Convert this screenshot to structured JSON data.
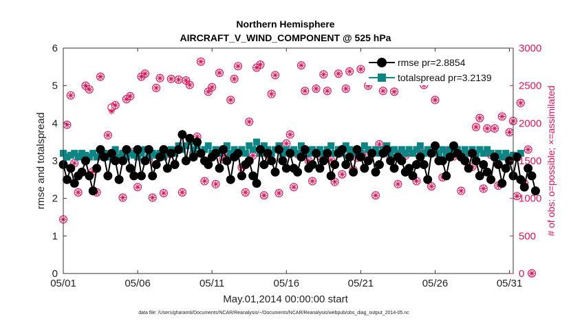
{
  "chart_data": {
    "type": "line",
    "title": [
      "Northern Hemisphere",
      "AIRCRAFT_V_WIND_COMPONENT @ 525 hPa"
    ],
    "xlabel": "May.01,2014 00:00:00 start",
    "ylabel": "rmse and totalspread",
    "ylabel_right": "# of obs: o=possible; ×=assimilated",
    "footnote": "data file: /Users/gharamti/Documents/NCAR/Reanalysis/~/Documents/NCAR/Reanalysis/webpub/obs_diag_output_2014-05.nc",
    "xlim": [
      1,
      31.25
    ],
    "ylim": [
      0,
      6
    ],
    "ylim_right": [
      0,
      3000
    ],
    "x_ticks": [
      {
        "v": 1,
        "label": "05/01"
      },
      {
        "v": 6,
        "label": "05/06"
      },
      {
        "v": 11,
        "label": "05/11"
      },
      {
        "v": 16,
        "label": "05/16"
      },
      {
        "v": 21,
        "label": "05/21"
      },
      {
        "v": 26,
        "label": "05/26"
      },
      {
        "v": 31,
        "label": "05/31"
      }
    ],
    "y_ticks": [
      "0",
      "1",
      "2",
      "3",
      "4",
      "5",
      "6"
    ],
    "y_ticks_right": [
      "0",
      "500",
      "1000",
      "1500",
      "2000",
      "2500",
      "3000"
    ],
    "legend_position": "top-right",
    "colors": {
      "rmse": "#000000",
      "totalspread": "#0e8585",
      "obs": "#d4145a"
    },
    "series": [
      {
        "name": "rmse pr=2.8854",
        "x_start": 1,
        "step": 0.25,
        "values": [
          2.9,
          2.5,
          2.8,
          2.4,
          2.6,
          2.7,
          3,
          2.6,
          2.2,
          2.8,
          3.3,
          3.1,
          2.6,
          3.2,
          3,
          2.5,
          3,
          3.3,
          2.8,
          2.6,
          3.3,
          2.6,
          3,
          3.3,
          2.6,
          2.9,
          3.1,
          3.3,
          2.8,
          3.2,
          2.9,
          3.3,
          3.7,
          3,
          3.6,
          3.1,
          3.5,
          3.2,
          3,
          2.9,
          3.1,
          3.2,
          2.8,
          3.3,
          3,
          2.5,
          3.1,
          3.2,
          2.6,
          2.9,
          3,
          2.6,
          2.4,
          3.3,
          2.9,
          3.2,
          3,
          2.7,
          3.3,
          3,
          2.8,
          3.2,
          2.8,
          2.7,
          3.1,
          3.3,
          2.8,
          2.9,
          3.2,
          2.8,
          3,
          3.2,
          2.6,
          2.9,
          3.2,
          3.3,
          2.9,
          3.1,
          2.7,
          3.3,
          3.1,
          2.8,
          3,
          3.2,
          2.7,
          2.9,
          3.2,
          3.3,
          3,
          2.8,
          3.1,
          3,
          2.7,
          2.8,
          2.6,
          2.9,
          3.1,
          2.9,
          2.5,
          3.2,
          3.4,
          3,
          3,
          2.6,
          3.1,
          3.4,
          3.2,
          3.1,
          3,
          2.8,
          3.2,
          3,
          2.6,
          2.9,
          2.7,
          2.5,
          3.1,
          2.9,
          2.4,
          2.8,
          3,
          2.6,
          3.1,
          2.5,
          2.3,
          2.8,
          2.6,
          2.2
        ],
        "mark_every": 1
      },
      {
        "name": "totalspread pr=3.2139",
        "x_start": 1,
        "step": 0.25,
        "values": [
          3.2,
          3.1,
          3.15,
          3.2,
          3.1,
          3.2,
          3.15,
          3.1,
          3.2,
          3.1,
          3.15,
          3.2,
          3.1,
          3.2,
          3.3,
          3.1,
          3.2,
          3.1,
          3.2,
          3.15,
          3.1,
          3.2,
          3.3,
          3.1,
          3.2,
          3.15,
          3.2,
          3.1,
          3.2,
          3.3,
          3.2,
          3.4,
          3.3,
          3.4,
          3.5,
          3.3,
          3.4,
          3.2,
          3.3,
          3.4,
          3.2,
          3.3,
          3.2,
          3.3,
          3.4,
          3.2,
          3.3,
          3.2,
          3.3,
          3.2,
          3.4,
          3.3,
          3.5,
          3.2,
          3.4,
          3.3,
          3.2,
          3.3,
          3.4,
          3.2,
          3.3,
          3.2,
          3.3,
          3.2,
          3.4,
          3.3,
          3.2,
          3.3,
          3.2,
          3.3,
          3.2,
          3.3,
          3.4,
          3.2,
          3.3,
          3.2,
          3.4,
          3.3,
          3.2,
          3.3,
          3.2,
          3.4,
          3.3,
          3.2,
          3.3,
          3.2,
          3.3,
          3.4,
          3.2,
          3.3,
          3.2,
          3.3,
          3.2,
          3.3,
          3.2,
          3.3,
          3.4,
          3.2,
          3.3,
          3.2,
          3.3,
          3.2,
          3.3,
          3.2,
          3.3,
          3.2,
          3.3,
          3.2,
          3.3,
          3.2,
          3.3,
          3.2,
          3.3,
          3.2,
          3.3,
          3.2,
          3.1,
          3.2,
          3.1,
          3.2,
          3.1,
          3.15,
          3.1,
          3.2
        ],
        "mark_every": 2
      },
      {
        "name": "# of obs possible",
        "axis": "right",
        "x_start": 1,
        "step": 0.25,
        "values": [
          720,
          1980,
          2370,
          1470,
          1080,
          1580,
          2500,
          2450,
          1360,
          1080,
          2620,
          1570,
          1840,
          2210,
          2240,
          1570,
          1010,
          2320,
          2360,
          1620,
          1150,
          2620,
          2660,
          1520,
          1010,
          2470,
          2600,
          1070,
          1590,
          2590,
          1460,
          2580,
          1080,
          2570,
          2510,
          1600,
          1820,
          2820,
          1230,
          2420,
          2480,
          1190,
          2670,
          1520,
          1570,
          2310,
          2590,
          2760,
          1410,
          1080,
          2020,
          1570,
          2740,
          2780,
          1040,
          1580,
          2390,
          2640,
          1070,
          1510,
          1730,
          1850,
          1150,
          1590,
          2770,
          2430,
          1500,
          1230,
          2460,
          1570,
          2650,
          2430,
          1510,
          1220,
          2660,
          1320,
          2460,
          2690,
          1380,
          1540,
          2720,
          1580,
          2500,
          2730,
          1040,
          1720,
          2430,
          2660,
          1560,
          2420,
          1190,
          2630,
          1570,
          2870,
          2770,
          1230,
          1630,
          2510,
          2690,
          1160,
          2310,
          2640,
          1280,
          1630,
          2800,
          1560,
          2780,
          1100,
          1580,
          2760,
          1420,
          1950,
          2070,
          1130,
          1930,
          1580,
          1930,
          1170,
          2090,
          1560,
          1880,
          2030,
          1030,
          2270,
          1200,
          1650,
          3
        ],
        "mark_every": 1
      },
      {
        "name": "# of obs assimilated",
        "axis": "right",
        "x_start": 1,
        "step": 0.25,
        "values": [
          720,
          1980,
          2370,
          1470,
          1080,
          1580,
          2500,
          2450,
          1360,
          1080,
          2620,
          1570,
          1840,
          2160,
          2240,
          1570,
          1010,
          2320,
          2360,
          1620,
          1150,
          2620,
          2660,
          1520,
          1010,
          2470,
          2600,
          1070,
          1590,
          2590,
          1460,
          2580,
          1080,
          2570,
          2510,
          1600,
          1820,
          2820,
          1230,
          2420,
          2480,
          1190,
          2670,
          1520,
          1570,
          2310,
          2590,
          2760,
          1410,
          1080,
          2020,
          1570,
          2740,
          2780,
          1040,
          1580,
          2390,
          2640,
          1070,
          1510,
          1730,
          1850,
          1150,
          1590,
          2770,
          2430,
          1500,
          1230,
          2460,
          1570,
          2650,
          2430,
          1510,
          1220,
          2660,
          1320,
          2460,
          2690,
          1380,
          1540,
          2720,
          1580,
          2500,
          2730,
          1040,
          1720,
          2430,
          2660,
          1560,
          2420,
          1190,
          2630,
          1570,
          2870,
          2770,
          1230,
          1630,
          2510,
          2690,
          1160,
          2310,
          2640,
          1280,
          1630,
          2800,
          1560,
          2780,
          1100,
          1580,
          2760,
          1420,
          1950,
          2070,
          1130,
          1930,
          1580,
          1930,
          1170,
          2090,
          1560,
          1880,
          2030,
          1030,
          2270,
          1200,
          1650,
          3
        ],
        "mark_every": 1
      }
    ]
  }
}
